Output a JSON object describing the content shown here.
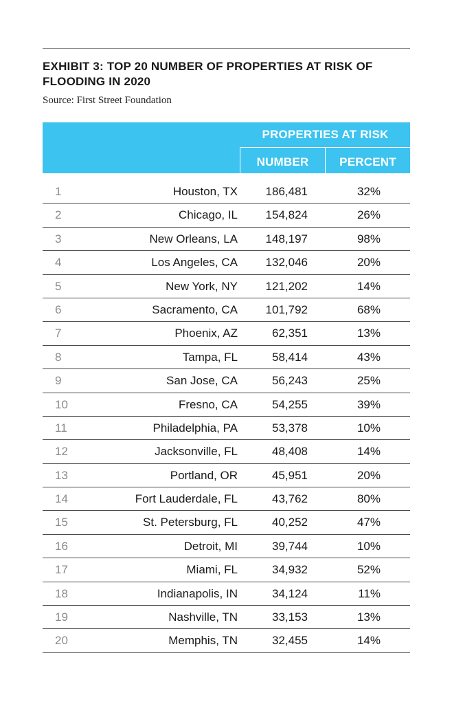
{
  "title": "EXHIBIT 3: TOP 20 NUMBER OF PROPERTIES AT RISK OF FLOODING IN 2020",
  "source": "Source: First Street Foundation",
  "colors": {
    "header_band": "#3cc3ef",
    "header_text": "#ffffff",
    "rank_text": "#8a8a8a"
  },
  "table": {
    "group_header": "PROPERTIES AT RISK",
    "columns": [
      "NUMBER",
      "PERCENT"
    ],
    "rows": [
      {
        "rank": "1",
        "city": "Houston, TX",
        "number": "186,481",
        "percent": "32%"
      },
      {
        "rank": "2",
        "city": "Chicago, IL",
        "number": "154,824",
        "percent": "26%"
      },
      {
        "rank": "3",
        "city": "New Orleans, LA",
        "number": "148,197",
        "percent": "98%"
      },
      {
        "rank": "4",
        "city": "Los Angeles, CA",
        "number": "132,046",
        "percent": "20%"
      },
      {
        "rank": "5",
        "city": "New York, NY",
        "number": "121,202",
        "percent": "14%"
      },
      {
        "rank": "6",
        "city": "Sacramento, CA",
        "number": "101,792",
        "percent": "68%"
      },
      {
        "rank": "7",
        "city": "Phoenix, AZ",
        "number": "62,351",
        "percent": "13%"
      },
      {
        "rank": "8",
        "city": "Tampa, FL",
        "number": "58,414",
        "percent": "43%"
      },
      {
        "rank": "9",
        "city": "San Jose, CA",
        "number": "56,243",
        "percent": "25%"
      },
      {
        "rank": "10",
        "city": "Fresno, CA",
        "number": "54,255",
        "percent": "39%"
      },
      {
        "rank": "11",
        "city": "Philadelphia, PA",
        "number": "53,378",
        "percent": "10%"
      },
      {
        "rank": "12",
        "city": "Jacksonville, FL",
        "number": "48,408",
        "percent": "14%"
      },
      {
        "rank": "13",
        "city": "Portland, OR",
        "number": "45,951",
        "percent": "20%"
      },
      {
        "rank": "14",
        "city": "Fort Lauderdale, FL",
        "number": "43,762",
        "percent": "80%"
      },
      {
        "rank": "15",
        "city": "St. Petersburg, FL",
        "number": "40,252",
        "percent": "47%"
      },
      {
        "rank": "16",
        "city": "Detroit, MI",
        "number": "39,744",
        "percent": "10%"
      },
      {
        "rank": "17",
        "city": "Miami, FL",
        "number": "34,932",
        "percent": "52%"
      },
      {
        "rank": "18",
        "city": "Indianapolis, IN",
        "number": "34,124",
        "percent": "11%"
      },
      {
        "rank": "19",
        "city": "Nashville, TN",
        "number": "33,153",
        "percent": "13%"
      },
      {
        "rank": "20",
        "city": "Memphis, TN",
        "number": "32,455",
        "percent": "14%"
      }
    ]
  }
}
